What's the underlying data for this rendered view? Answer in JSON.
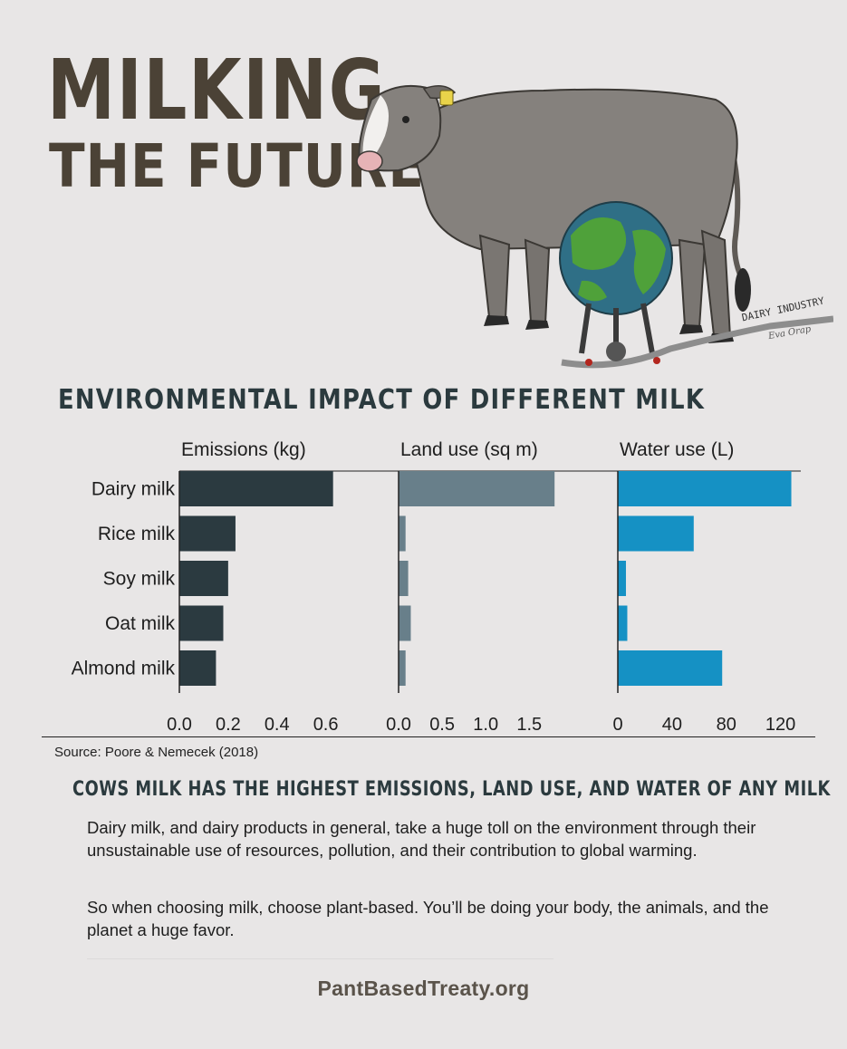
{
  "title": {
    "line1": "MILKING",
    "line2": "THE FUTURE"
  },
  "illustration": {
    "tag_text": "DAIRY INDUSTRY",
    "signature": "Eva Orap"
  },
  "chart_title": "ENVIRONMENTAL IMPACT OF DIFFERENT MILK",
  "chart_data": {
    "type": "bar",
    "orientation": "horizontal",
    "categories": [
      "Dairy milk",
      "Rice milk",
      "Soy milk",
      "Oat milk",
      "Almond milk"
    ],
    "panels": [
      {
        "name": "Emissions (kg)",
        "values": [
          0.63,
          0.23,
          0.2,
          0.18,
          0.15
        ],
        "xlim": [
          0,
          0.75
        ],
        "ticks": [
          0.0,
          0.2,
          0.4,
          0.6
        ],
        "tick_labels": [
          "0.0",
          "0.2",
          "0.4",
          "0.6"
        ],
        "color": "#2b3a40"
      },
      {
        "name": "Land use (sq m)",
        "values": [
          1.79,
          0.08,
          0.11,
          0.14,
          0.08
        ],
        "xlim": [
          0,
          2.1
        ],
        "ticks": [
          0.0,
          0.5,
          1.0,
          1.5
        ],
        "tick_labels": [
          "0.0",
          "0.5",
          "1.0",
          "1.5"
        ],
        "color": "#687f8a"
      },
      {
        "name": "Water use (L)",
        "values": [
          128,
          56,
          6,
          7,
          77
        ],
        "xlim": [
          0,
          135
        ],
        "ticks": [
          0,
          40,
          80,
          120
        ],
        "tick_labels": [
          "0",
          "40",
          "80",
          "120"
        ],
        "color": "#1591c4"
      }
    ]
  },
  "source": "Source: Poore & Nemecek (2018)",
  "headline": "COWS MILK HAS THE HIGHEST EMISSIONS, LAND USE, AND WATER OF ANY MILK",
  "paragraphs": [
    "Dairy milk, and dairy products in general, take a huge toll on the environment through their unsustainable use of resources, pollution, and their contribution to global warming.",
    "So when choosing milk, choose plant-based. You’ll be doing your body, the animals, and the planet a huge favor."
  ],
  "footer": "PantBasedTreaty.org"
}
